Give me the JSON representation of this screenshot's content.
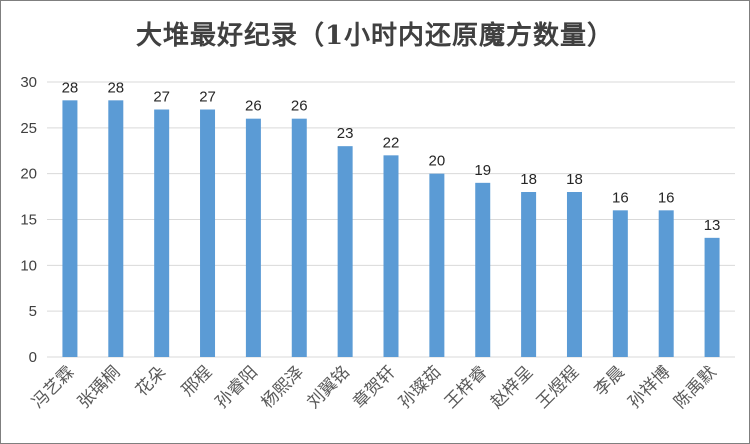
{
  "chart_data": {
    "type": "bar",
    "title": "大堆最好纪录（1小时内还原魔方数量）",
    "categories": [
      "冯艺霖",
      "张瑀桐",
      "花朵",
      "邢程",
      "孙睿阳",
      "杨熙泽",
      "刘翼铭",
      "章贺轩",
      "孙璨茹",
      "王梓睿",
      "赵梓呈",
      "王煜程",
      "李晨",
      "孙祥博",
      "陈禹默"
    ],
    "values": [
      28,
      28,
      27,
      27,
      26,
      26,
      23,
      22,
      20,
      19,
      18,
      18,
      16,
      16,
      13
    ],
    "ylim": [
      0,
      30
    ],
    "yticks": [
      0,
      5,
      10,
      15,
      20,
      25,
      30
    ],
    "grid": true,
    "bar_color": "#5b9bd5",
    "grid_color": "#d9d9d9"
  }
}
